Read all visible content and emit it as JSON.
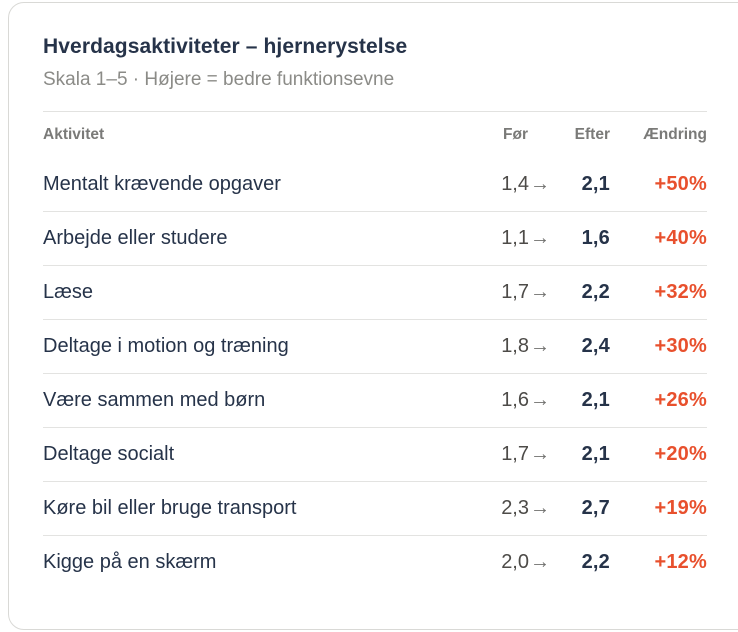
{
  "card": {
    "title": "Hverdagsaktiviteter – hjernerystelse",
    "subtitle": "Skala 1–5 · Højere = bedre funktionsevne"
  },
  "table": {
    "arrow": "→",
    "headers": {
      "activity": "Aktivitet",
      "before": "Før",
      "after": "Efter",
      "change": "Ændring"
    },
    "rows": [
      {
        "activity": "Mentalt krævende opgaver",
        "before": "1,4",
        "after": "2,1",
        "change": "+50%"
      },
      {
        "activity": "Arbejde eller studere",
        "before": "1,1",
        "after": "1,6",
        "change": "+40%"
      },
      {
        "activity": "Læse",
        "before": "1,7",
        "after": "2,2",
        "change": "+32%"
      },
      {
        "activity": "Deltage i motion og træning",
        "before": "1,8",
        "after": "2,4",
        "change": "+30%"
      },
      {
        "activity": "Være sammen med børn",
        "before": "1,6",
        "after": "2,1",
        "change": "+26%"
      },
      {
        "activity": "Deltage socialt",
        "before": "1,7",
        "after": "2,1",
        "change": "+20%"
      },
      {
        "activity": "Køre bil eller bruge transport",
        "before": "2,3",
        "after": "2,7",
        "change": "+19%"
      },
      {
        "activity": "Kigge på en skærm",
        "before": "2,0",
        "after": "2,2",
        "change": "+12%"
      }
    ]
  },
  "colors": {
    "title_navy": "#263349",
    "change_orange": "#e8502d",
    "muted_gray": "#8b8b87",
    "divider": "#e3e3e1"
  },
  "chart_data": {
    "type": "table",
    "title": "Hverdagsaktiviteter – hjernerystelse",
    "subtitle": "Skala 1–5 · Højere = bedre funktionsevne",
    "scale_range": [
      1,
      5
    ],
    "columns": [
      "Aktivitet",
      "Før",
      "Efter",
      "Ændring"
    ],
    "rows": [
      [
        "Mentalt krævende opgaver",
        1.4,
        2.1,
        "+50%"
      ],
      [
        "Arbejde eller studere",
        1.1,
        1.6,
        "+40%"
      ],
      [
        "Læse",
        1.7,
        2.2,
        "+32%"
      ],
      [
        "Deltage i motion og træning",
        1.8,
        2.4,
        "+30%"
      ],
      [
        "Være sammen med børn",
        1.6,
        2.1,
        "+26%"
      ],
      [
        "Deltage socialt",
        1.7,
        2.1,
        "+20%"
      ],
      [
        "Køre bil eller bruge transport",
        2.3,
        2.7,
        "+19%"
      ],
      [
        "Kigge på en skærm",
        2.0,
        2.2,
        "+12%"
      ]
    ]
  }
}
